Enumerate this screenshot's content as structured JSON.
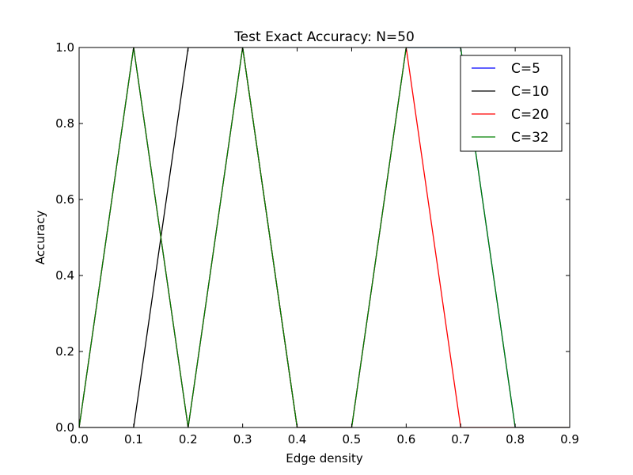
{
  "chart_data": {
    "type": "line",
    "title": "Test Exact Accuracy: N=50",
    "xlabel": "Edge density",
    "ylabel": "Accuracy",
    "xlim": [
      0.0,
      0.9
    ],
    "ylim": [
      0.0,
      1.0
    ],
    "xticks": [
      "0.0",
      "0.1",
      "0.2",
      "0.3",
      "0.4",
      "0.5",
      "0.6",
      "0.7",
      "0.8",
      "0.9"
    ],
    "yticks": [
      "0.0",
      "0.2",
      "0.4",
      "0.6",
      "0.8",
      "1.0"
    ],
    "grid": false,
    "legend_position": "top-right",
    "x": [
      0.0,
      0.1,
      0.2,
      0.3,
      0.4,
      0.5,
      0.6,
      0.7,
      0.8,
      0.9
    ],
    "series": [
      {
        "name": "C=5",
        "color": "#0000ff",
        "values": [
          0,
          1,
          0,
          1,
          0,
          0,
          1,
          1,
          0,
          0
        ]
      },
      {
        "name": "C=10",
        "color": "#000000",
        "values": [
          0,
          0,
          1,
          1,
          0,
          0,
          0,
          0,
          0,
          0
        ]
      },
      {
        "name": "C=20",
        "color": "#ff0000",
        "values": [
          0,
          1,
          0,
          1,
          0,
          0,
          1,
          0,
          0,
          0
        ]
      },
      {
        "name": "C=32",
        "color": "#008000",
        "values": [
          0,
          1,
          0,
          1,
          0,
          0,
          1,
          1,
          0,
          0
        ]
      }
    ]
  }
}
